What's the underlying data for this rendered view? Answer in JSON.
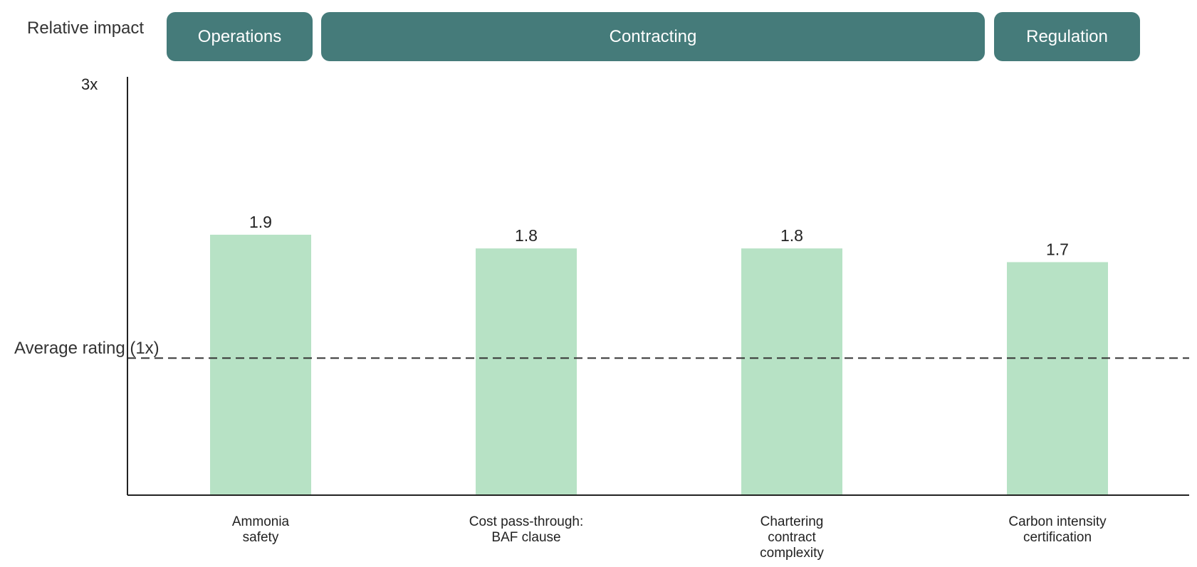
{
  "y_axis_title": "Relative impact",
  "average_label": "Average rating (1x)",
  "categories": [
    {
      "label": "Operations",
      "bars": [
        0
      ]
    },
    {
      "label": "Contracting",
      "bars": [
        1,
        2
      ]
    },
    {
      "label": "Regulation",
      "bars": [
        3
      ]
    }
  ],
  "colors": {
    "bar": "#b7e2c5",
    "category_pill": "#457b7a",
    "axis": "#222222",
    "average_line": "#333333"
  },
  "chart_data": {
    "type": "bar",
    "categories": [
      "Ammonia safety",
      "Cost pass-through: BAF clause",
      "Chartering contract complexity",
      "Carbon intensity certification"
    ],
    "values": [
      1.9,
      1.8,
      1.8,
      1.7
    ],
    "value_labels": [
      "1.9",
      "1.8",
      "1.8",
      "1.7"
    ],
    "x_labels": [
      [
        "Ammonia",
        "safety"
      ],
      [
        "Cost pass-through:",
        "BAF clause"
      ],
      [
        "Chartering",
        "contract",
        "complexity"
      ],
      [
        "Carbon intensity",
        "certification"
      ]
    ],
    "y_tick_labels": [
      "3x"
    ],
    "ylim": [
      0,
      3
    ],
    "reference_line": {
      "value": 1,
      "style": "dashed",
      "label": "Average rating (1x)"
    },
    "grid": false,
    "legend": "none"
  }
}
